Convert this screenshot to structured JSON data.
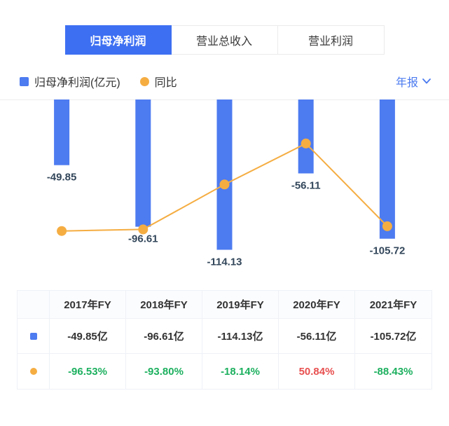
{
  "tabs": [
    {
      "label": "归母净利润",
      "active": true
    },
    {
      "label": "营业总收入",
      "active": false
    },
    {
      "label": "营业利润",
      "active": false
    }
  ],
  "legend": {
    "bar_label": "归母净利润(亿元)",
    "line_label": "同比",
    "period_label": "年报"
  },
  "colors": {
    "accent_blue": "#3d6ff2",
    "bar": "#4d7bf0",
    "line": "#f5ad42",
    "bar_value_text": "#33475b",
    "pct_green": "#1db05f",
    "pct_red": "#e85050"
  },
  "chart_data": {
    "type": "bar",
    "subtype": "bar-line-combo",
    "categories": [
      "2017年FY",
      "2018年FY",
      "2019年FY",
      "2020年FY",
      "2021年FY"
    ],
    "series": [
      {
        "name": "归母净利润(亿元)",
        "type": "bar",
        "unit": "亿元",
        "color": "#4d7bf0",
        "values": [
          -49.85,
          -96.61,
          -114.13,
          -56.11,
          -105.72
        ],
        "ylim": [
          -133,
          0
        ]
      },
      {
        "name": "同比",
        "type": "line",
        "unit": "%",
        "color": "#f5ad42",
        "values": [
          -96.53,
          -93.8,
          -18.14,
          50.84,
          -88.43
        ],
        "ylim": [
          -170,
          125
        ]
      }
    ],
    "bar_value_labels": [
      "-49.85",
      "-96.61",
      "-114.13",
      "-56.11",
      "-105.72"
    ],
    "title": "",
    "xlabel": "",
    "ylabel": "",
    "grid": false,
    "legend_position": "top-left"
  },
  "table": {
    "headers": [
      "2017年FY",
      "2018年FY",
      "2019年FY",
      "2020年FY",
      "2021年FY"
    ],
    "rows": [
      {
        "legend": "bar",
        "cells": [
          {
            "text": "-49.85亿",
            "color": "dark"
          },
          {
            "text": "-96.61亿",
            "color": "dark"
          },
          {
            "text": "-114.13亿",
            "color": "dark"
          },
          {
            "text": "-56.11亿",
            "color": "dark"
          },
          {
            "text": "-105.72亿",
            "color": "dark"
          }
        ]
      },
      {
        "legend": "line",
        "cells": [
          {
            "text": "-96.53%",
            "color": "green"
          },
          {
            "text": "-93.80%",
            "color": "green"
          },
          {
            "text": "-18.14%",
            "color": "green"
          },
          {
            "text": "50.84%",
            "color": "red"
          },
          {
            "text": "-88.43%",
            "color": "green"
          }
        ]
      }
    ]
  }
}
